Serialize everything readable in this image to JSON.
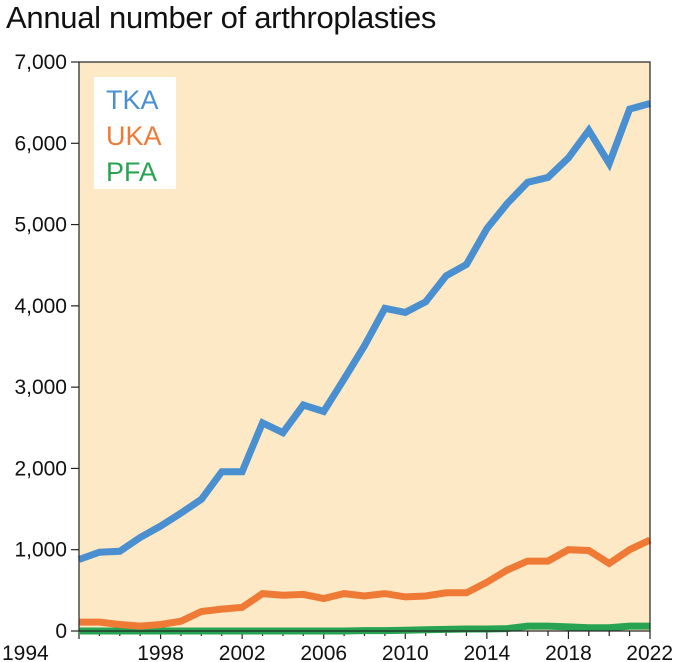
{
  "chart_data": {
    "type": "line",
    "title": "Annual number of arthroplasties",
    "xlabel": "",
    "ylabel": "",
    "xlim": [
      1994,
      2022
    ],
    "ylim": [
      0,
      7000
    ],
    "x_ticks": [
      1994,
      1998,
      2002,
      2006,
      2010,
      2014,
      2018,
      2022
    ],
    "y_ticks": [
      0,
      1000,
      2000,
      3000,
      4000,
      5000,
      6000,
      7000
    ],
    "y_tick_labels": [
      "0",
      "1,000",
      "2,000",
      "3,000",
      "4,000",
      "5,000",
      "6,000",
      "7,000"
    ],
    "x_tick_labels": [
      "1994",
      "1998",
      "2002",
      "2006",
      "2010",
      "2014",
      "2018",
      "2022"
    ],
    "grid": false,
    "legend_position": "top-left",
    "background_color": "#fde9c5",
    "x": [
      1994,
      1995,
      1996,
      1997,
      1998,
      1999,
      2000,
      2001,
      2002,
      2003,
      2004,
      2005,
      2006,
      2007,
      2008,
      2009,
      2010,
      2011,
      2012,
      2013,
      2014,
      2015,
      2016,
      2017,
      2018,
      2019,
      2020,
      2021,
      2022
    ],
    "series": [
      {
        "name": "TKA",
        "color": "#4a90d0",
        "values": [
          880,
          970,
          980,
          1150,
          1290,
          1450,
          1620,
          1960,
          1960,
          2560,
          2440,
          2780,
          2700,
          3100,
          3510,
          3970,
          3920,
          4050,
          4370,
          4510,
          4950,
          5260,
          5520,
          5580,
          5820,
          6160,
          5750,
          6420,
          6490
        ]
      },
      {
        "name": "UKA",
        "color": "#ee7a36",
        "values": [
          110,
          110,
          80,
          60,
          80,
          120,
          240,
          270,
          290,
          460,
          440,
          450,
          400,
          460,
          430,
          460,
          420,
          430,
          470,
          470,
          600,
          750,
          860,
          860,
          1000,
          990,
          830,
          1000,
          1120
        ]
      },
      {
        "name": "PFA",
        "color": "#27a352",
        "values": [
          0,
          0,
          0,
          0,
          0,
          0,
          0,
          0,
          0,
          0,
          0,
          0,
          0,
          0,
          5,
          5,
          10,
          15,
          20,
          25,
          25,
          30,
          60,
          60,
          50,
          40,
          40,
          60,
          60
        ]
      }
    ]
  }
}
